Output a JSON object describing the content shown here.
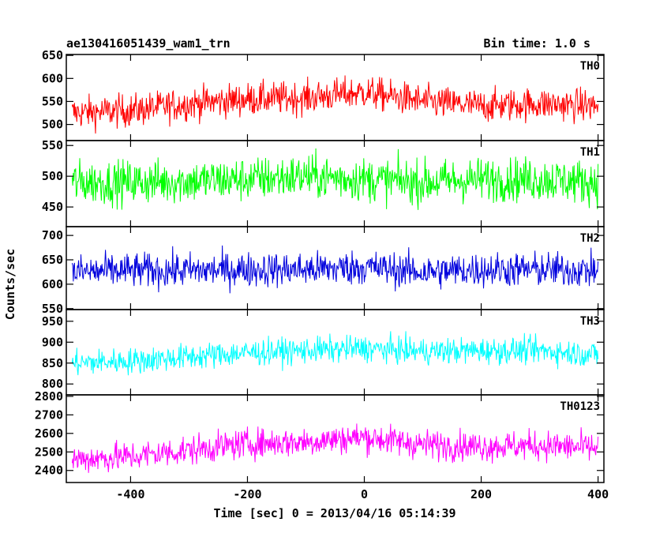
{
  "header": {
    "left_title": "ae130416051439_wam1_trn",
    "right_title": "Bin time: 1.0 s"
  },
  "ylabel": "Counts/sec",
  "xlabel": "Time [sec] 0 = 2013/04/16 05:14:39",
  "chart_data": [
    {
      "type": "line",
      "name": "TH0",
      "color": "#ff0000",
      "xlim": [
        -510,
        410
      ],
      "ylim": [
        465,
        652
      ],
      "yticks": [
        500,
        550,
        600,
        650
      ],
      "x_range": [
        -500,
        400
      ],
      "trend": [
        [
          -500,
          525
        ],
        [
          -400,
          530
        ],
        [
          -300,
          545
        ],
        [
          -200,
          555
        ],
        [
          -100,
          558
        ],
        [
          0,
          570
        ],
        [
          100,
          550
        ],
        [
          200,
          540
        ],
        [
          300,
          545
        ],
        [
          400,
          540
        ]
      ],
      "noise": 40
    },
    {
      "type": "line",
      "name": "TH1",
      "color": "#00ff00",
      "xlim": [
        -510,
        410
      ],
      "ylim": [
        418,
        558
      ],
      "yticks": [
        450,
        500,
        550
      ],
      "x_range": [
        -500,
        400
      ],
      "trend": [
        [
          -500,
          490
        ],
        [
          -400,
          490
        ],
        [
          -300,
          492
        ],
        [
          -200,
          495
        ],
        [
          -100,
          500
        ],
        [
          0,
          495
        ],
        [
          100,
          490
        ],
        [
          200,
          495
        ],
        [
          300,
          495
        ],
        [
          400,
          490
        ]
      ],
      "noise": 40
    },
    {
      "type": "line",
      "name": "TH2",
      "color": "#0000dd",
      "xlim": [
        -510,
        410
      ],
      "ylim": [
        548,
        718
      ],
      "yticks": [
        550,
        600,
        650,
        700
      ],
      "x_range": [
        -500,
        400
      ],
      "trend": [
        [
          -500,
          625
        ],
        [
          -400,
          628
        ],
        [
          -300,
          628
        ],
        [
          -200,
          630
        ],
        [
          -100,
          630
        ],
        [
          0,
          635
        ],
        [
          100,
          625
        ],
        [
          200,
          630
        ],
        [
          300,
          630
        ],
        [
          400,
          628
        ]
      ],
      "noise": 40
    },
    {
      "type": "line",
      "name": "TH3",
      "color": "#00ffff",
      "xlim": [
        -510,
        410
      ],
      "ylim": [
        774,
        978
      ],
      "yticks": [
        800,
        850,
        900,
        950
      ],
      "x_range": [
        -500,
        400
      ],
      "trend": [
        [
          -500,
          850
        ],
        [
          -400,
          855
        ],
        [
          -300,
          865
        ],
        [
          -200,
          875
        ],
        [
          -100,
          880
        ],
        [
          0,
          885
        ],
        [
          100,
          878
        ],
        [
          200,
          880
        ],
        [
          300,
          880
        ],
        [
          400,
          870
        ]
      ],
      "noise": 35
    },
    {
      "type": "line",
      "name": "TH0123",
      "color": "#ff00ff",
      "xlim": [
        -510,
        410
      ],
      "ylim": [
        2335,
        2808
      ],
      "yticks": [
        2400,
        2500,
        2600,
        2700,
        2800
      ],
      "xticks": [
        -400,
        -200,
        0,
        200,
        400
      ],
      "x_range": [
        -500,
        400
      ],
      "trend": [
        [
          -500,
          2460
        ],
        [
          -400,
          2475
        ],
        [
          -300,
          2510
        ],
        [
          -200,
          2545
        ],
        [
          -100,
          2555
        ],
        [
          0,
          2580
        ],
        [
          100,
          2540
        ],
        [
          200,
          2530
        ],
        [
          300,
          2535
        ],
        [
          400,
          2520
        ]
      ],
      "noise": 90
    }
  ]
}
